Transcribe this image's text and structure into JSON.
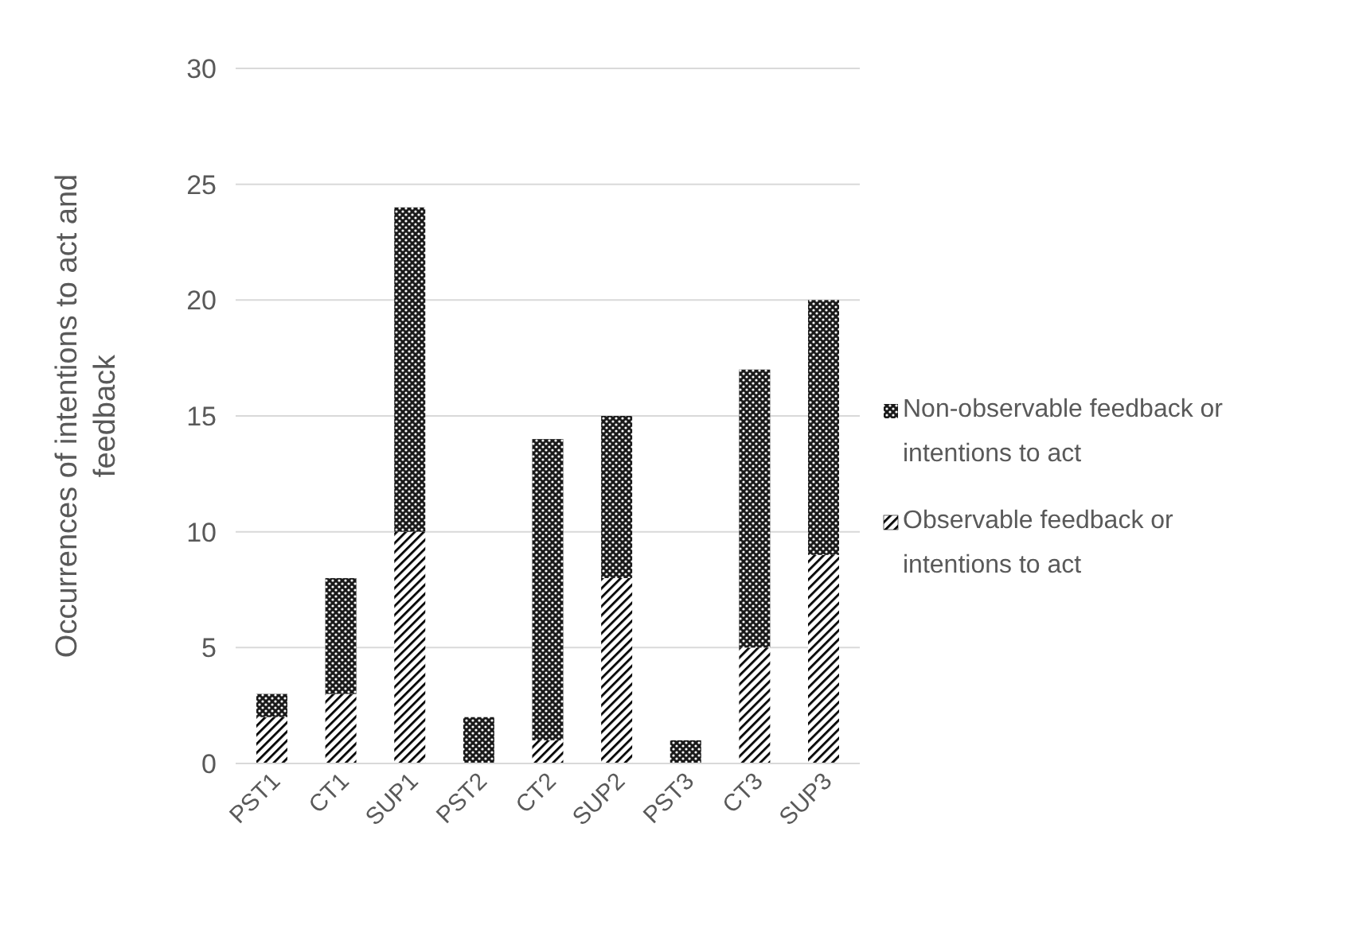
{
  "chart_data": {
    "type": "bar",
    "stacked": true,
    "ylabel": "Occurrences of intentions to act and feedback",
    "categories": [
      "PST1",
      "CT1",
      "SUP1",
      "PST2",
      "CT2",
      "SUP2",
      "PST3",
      "CT3",
      "SUP3"
    ],
    "series": [
      {
        "name": "Observable feedback or intentions to act",
        "color": "#ffffff",
        "values": [
          2,
          3,
          10,
          0,
          1,
          8,
          0,
          5,
          9
        ]
      },
      {
        "name": "Non-observable feedback or intentions to act",
        "color": "#1a1a1a",
        "values": [
          1,
          5,
          14,
          2,
          13,
          7,
          1,
          12,
          11
        ]
      }
    ],
    "ylim": [
      0,
      30
    ],
    "yticks": [
      0,
      5,
      10,
      15,
      20,
      25,
      30
    ],
    "grid": "y",
    "legend": "right"
  }
}
